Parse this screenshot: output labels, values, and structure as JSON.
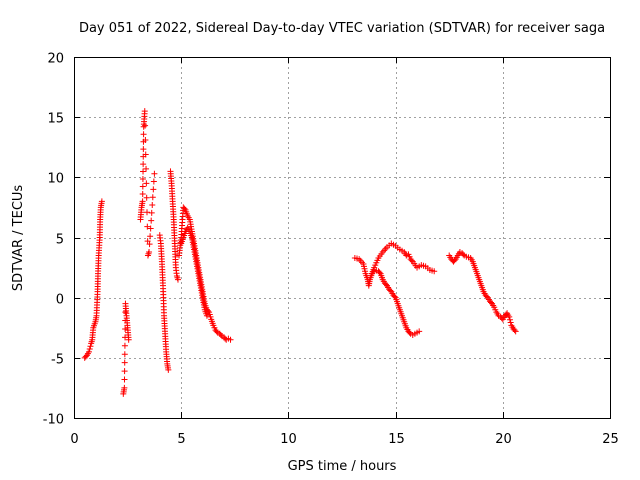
{
  "chart_data": {
    "type": "scatter",
    "title": "Day 051 of 2022, Sidereal Day-to-day VTEC variation (SDTVAR) for receiver saga",
    "xlabel": "GPS time / hours",
    "ylabel": "SDTVAR / TECUs",
    "xlim": [
      0,
      25
    ],
    "ylim": [
      -10,
      20
    ],
    "xticks": [
      "0",
      "5",
      "10",
      "15",
      "20",
      "25"
    ],
    "yticks": [
      "-10",
      "-5",
      "0",
      "5",
      "10",
      "15",
      "20"
    ],
    "grid": true,
    "marker": "+",
    "series_color": "#ff0000",
    "series": [
      {
        "name": "SDTVAR",
        "segments": [
          [
            [
              0.5,
              -5.0
            ],
            [
              0.6,
              -4.8
            ],
            [
              0.7,
              -4.5
            ],
            [
              0.8,
              -3.8
            ],
            [
              0.85,
              -3.5
            ],
            [
              0.9,
              -2.5
            ],
            [
              1.0,
              -2.0
            ],
            [
              1.05,
              -1.5
            ],
            [
              1.1,
              0.5
            ],
            [
              1.12,
              2.0
            ],
            [
              1.15,
              3.5
            ],
            [
              1.2,
              5.0
            ],
            [
              1.22,
              6.5
            ],
            [
              1.25,
              7.5
            ],
            [
              1.3,
              8.0
            ]
          ],
          [
            [
              2.3,
              -8.0
            ],
            [
              2.35,
              -7.5
            ],
            [
              2.4,
              -0.5
            ],
            [
              2.45,
              -1.5
            ],
            [
              2.5,
              -2.5
            ],
            [
              2.55,
              -3.5
            ]
          ],
          [
            [
              3.1,
              6.5
            ],
            [
              3.15,
              7.5
            ],
            [
              3.2,
              8.0
            ],
            [
              3.25,
              14.2
            ],
            [
              3.3,
              15.5
            ],
            [
              3.45,
              3.5
            ],
            [
              3.5,
              3.8
            ],
            [
              3.75,
              10.3
            ]
          ],
          [
            [
              4.0,
              5.2
            ],
            [
              4.05,
              4.5
            ],
            [
              4.1,
              3.0
            ],
            [
              4.15,
              1.0
            ],
            [
              4.2,
              -1.5
            ],
            [
              4.25,
              -3.0
            ],
            [
              4.3,
              -4.5
            ],
            [
              4.35,
              -5.5
            ],
            [
              4.4,
              -6.0
            ]
          ],
          [
            [
              4.5,
              10.5
            ],
            [
              4.55,
              9.5
            ],
            [
              4.6,
              8.0
            ],
            [
              4.65,
              6.5
            ],
            [
              4.7,
              4.5
            ],
            [
              4.75,
              2.5
            ],
            [
              4.8,
              1.8
            ],
            [
              4.85,
              1.5
            ]
          ],
          [
            [
              4.9,
              3.5
            ],
            [
              5.0,
              5.0
            ],
            [
              5.1,
              7.5
            ],
            [
              5.2,
              7.3
            ],
            [
              5.3,
              6.8
            ],
            [
              5.4,
              6.5
            ],
            [
              5.5,
              5.5
            ],
            [
              5.6,
              4.5
            ],
            [
              5.7,
              3.5
            ],
            [
              5.8,
              2.5
            ],
            [
              5.9,
              1.5
            ],
            [
              6.0,
              0.5
            ],
            [
              6.1,
              -0.5
            ],
            [
              6.2,
              -1.0
            ],
            [
              6.3,
              -1.2
            ],
            [
              6.4,
              -1.8
            ],
            [
              6.5,
              -2.3
            ],
            [
              6.6,
              -2.7
            ],
            [
              6.7,
              -2.9
            ],
            [
              6.8,
              -3.0
            ],
            [
              6.9,
              -3.2
            ],
            [
              7.0,
              -3.3
            ],
            [
              7.1,
              -3.5
            ],
            [
              7.2,
              -3.4
            ],
            [
              7.3,
              -3.5
            ]
          ],
          [
            [
              5.0,
              4.5
            ],
            [
              5.1,
              5.0
            ],
            [
              5.2,
              5.5
            ],
            [
              5.3,
              5.8
            ],
            [
              5.4,
              5.5
            ],
            [
              5.5,
              5.0
            ],
            [
              5.6,
              4.0
            ],
            [
              5.7,
              3.0
            ],
            [
              5.8,
              2.0
            ],
            [
              5.9,
              1.0
            ],
            [
              6.0,
              0.0
            ],
            [
              6.1,
              -1.0
            ],
            [
              6.2,
              -1.5
            ]
          ],
          [
            [
              13.1,
              3.3
            ],
            [
              13.3,
              3.2
            ],
            [
              13.5,
              2.8
            ],
            [
              13.6,
              2.0
            ],
            [
              13.7,
              1.5
            ],
            [
              13.75,
              1.0
            ],
            [
              13.8,
              1.5
            ],
            [
              13.9,
              2.0
            ],
            [
              14.0,
              2.3
            ],
            [
              14.2,
              2.2
            ],
            [
              14.3,
              2.0
            ],
            [
              14.4,
              1.5
            ],
            [
              14.5,
              1.2
            ],
            [
              14.6,
              1.0
            ],
            [
              14.7,
              0.7
            ],
            [
              14.8,
              0.5
            ],
            [
              14.9,
              0.2
            ],
            [
              15.0,
              0.0
            ],
            [
              15.1,
              -0.5
            ],
            [
              15.2,
              -1.0
            ],
            [
              15.3,
              -1.5
            ],
            [
              15.4,
              -2.0
            ],
            [
              15.5,
              -2.5
            ],
            [
              15.6,
              -2.8
            ],
            [
              15.7,
              -3.0
            ],
            [
              15.8,
              -3.1
            ],
            [
              15.9,
              -3.0
            ],
            [
              16.0,
              -2.9
            ],
            [
              16.1,
              -2.8
            ]
          ],
          [
            [
              13.9,
              2.0
            ],
            [
              14.0,
              2.5
            ],
            [
              14.2,
              3.3
            ],
            [
              14.4,
              3.8
            ],
            [
              14.6,
              4.2
            ],
            [
              14.8,
              4.5
            ],
            [
              15.0,
              4.3
            ],
            [
              15.2,
              4.0
            ],
            [
              15.4,
              3.8
            ],
            [
              15.5,
              3.5
            ],
            [
              15.6,
              3.6
            ],
            [
              15.7,
              3.2
            ],
            [
              15.8,
              3.0
            ],
            [
              16.0,
              2.5
            ],
            [
              16.2,
              2.7
            ],
            [
              16.4,
              2.6
            ],
            [
              16.6,
              2.3
            ],
            [
              16.8,
              2.2
            ]
          ],
          [
            [
              17.5,
              3.5
            ],
            [
              17.6,
              3.2
            ],
            [
              17.7,
              3.0
            ],
            [
              17.8,
              3.2
            ],
            [
              17.9,
              3.5
            ],
            [
              18.0,
              3.8
            ],
            [
              18.1,
              3.7
            ],
            [
              18.2,
              3.5
            ],
            [
              18.3,
              3.4
            ],
            [
              18.5,
              3.3
            ],
            [
              18.6,
              3.0
            ],
            [
              18.7,
              2.5
            ],
            [
              18.8,
              2.0
            ],
            [
              18.9,
              1.5
            ],
            [
              19.0,
              1.0
            ],
            [
              19.1,
              0.5
            ],
            [
              19.2,
              0.2
            ],
            [
              19.3,
              0.0
            ],
            [
              19.4,
              -0.3
            ],
            [
              19.5,
              -0.5
            ],
            [
              19.6,
              -0.8
            ],
            [
              19.7,
              -1.2
            ],
            [
              19.8,
              -1.5
            ],
            [
              19.9,
              -1.6
            ],
            [
              20.0,
              -1.8
            ],
            [
              20.1,
              -1.5
            ],
            [
              20.2,
              -1.3
            ],
            [
              20.3,
              -1.6
            ],
            [
              20.4,
              -2.3
            ],
            [
              20.5,
              -2.6
            ],
            [
              20.6,
              -2.8
            ]
          ]
        ]
      }
    ]
  }
}
